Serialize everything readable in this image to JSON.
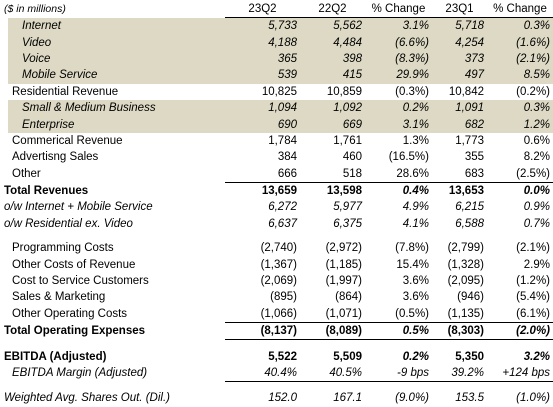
{
  "header": {
    "caption": "($ in millions)",
    "columns": [
      "23Q2",
      "22Q2",
      "% Change",
      "23Q1",
      "% Change"
    ]
  },
  "rows": [
    {
      "label": "Internet",
      "values": [
        "5,733",
        "5,562",
        "3.1%",
        "5,718",
        "0.3%"
      ]
    },
    {
      "label": "Video",
      "values": [
        "4,188",
        "4,484",
        "(6.6%)",
        "4,254",
        "(1.6%)"
      ]
    },
    {
      "label": "Voice",
      "values": [
        "365",
        "398",
        "(8.3%)",
        "373",
        "(2.1%)"
      ]
    },
    {
      "label": "Mobile Service",
      "values": [
        "539",
        "415",
        "29.9%",
        "497",
        "8.5%"
      ]
    },
    {
      "label": "Residential Revenue",
      "values": [
        "10,825",
        "10,859",
        "(0.3%)",
        "10,842",
        "(0.2%)"
      ]
    },
    {
      "label": "Small & Medium Business",
      "values": [
        "1,094",
        "1,092",
        "0.2%",
        "1,091",
        "0.3%"
      ]
    },
    {
      "label": "Enterprise",
      "values": [
        "690",
        "669",
        "3.1%",
        "682",
        "1.2%"
      ]
    },
    {
      "label": "Commerical Revenue",
      "values": [
        "1,784",
        "1,761",
        "1.3%",
        "1,773",
        "0.6%"
      ]
    },
    {
      "label": "Advertisng Sales",
      "values": [
        "384",
        "460",
        "(16.5%)",
        "355",
        "8.2%"
      ]
    },
    {
      "label": "Other",
      "values": [
        "666",
        "518",
        "28.6%",
        "683",
        "(2.5%)"
      ]
    },
    {
      "label": "Total Revenues",
      "values": [
        "13,659",
        "13,598",
        "0.4%",
        "13,653",
        "0.0%"
      ]
    },
    {
      "label": "o/w Internet + Mobile Service",
      "values": [
        "6,272",
        "5,977",
        "4.9%",
        "6,215",
        "0.9%"
      ]
    },
    {
      "label": "o/w Residential ex. Video",
      "values": [
        "6,637",
        "6,375",
        "4.1%",
        "6,588",
        "0.7%"
      ]
    },
    {
      "label": "Programming Costs",
      "values": [
        "(2,740)",
        "(2,972)",
        "(7.8%)",
        "(2,799)",
        "(2.1%)"
      ]
    },
    {
      "label": "Other Costs of Revenue",
      "values": [
        "(1,367)",
        "(1,185)",
        "15.4%",
        "(1,328)",
        "2.9%"
      ]
    },
    {
      "label": "Cost to Service Customers",
      "values": [
        "(2,069)",
        "(1,997)",
        "3.6%",
        "(2,095)",
        "(1.2%)"
      ]
    },
    {
      "label": "Sales & Marketing",
      "values": [
        "(895)",
        "(864)",
        "3.6%",
        "(946)",
        "(5.4%)"
      ]
    },
    {
      "label": "Other Operating Costs",
      "values": [
        "(1,066)",
        "(1,071)",
        "(0.5%)",
        "(1,135)",
        "(6.1%)"
      ]
    },
    {
      "label": "Total Operating Expenses",
      "values": [
        "(8,137)",
        "(8,089)",
        "0.5%",
        "(8,303)",
        "(2.0%)"
      ]
    },
    {
      "label": "EBITDA (Adjusted)",
      "values": [
        "5,522",
        "5,509",
        "0.2%",
        "5,350",
        "3.2%"
      ]
    },
    {
      "label": "EBITDA Margin (Adjusted)",
      "values": [
        "40.4%",
        "40.5%",
        "-9 bps",
        "39.2%",
        "+124 bps"
      ]
    },
    {
      "label": "Weighted Avg. Shares Out. (Dil.)",
      "values": [
        "152.0",
        "167.1",
        "(9.0%)",
        "153.5",
        "(1.0%)"
      ]
    }
  ]
}
